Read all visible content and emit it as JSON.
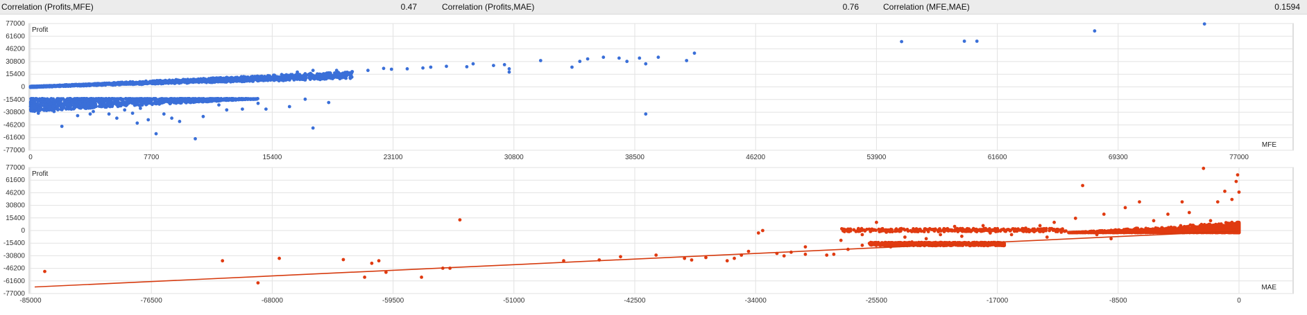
{
  "correlations": [
    {
      "label": "Correlation (Profits,MFE)",
      "value": "0.47"
    },
    {
      "label": "Correlation (Profits,MAE)",
      "value": "0.76"
    },
    {
      "label": "Correlation (MFE,MAE)",
      "value": "0.1594"
    }
  ],
  "colors": {
    "mfe_points": "#3a6fd8",
    "mae_points": "#e03a10",
    "trend_line": "#d63a0e",
    "grid": "#e2e2e2"
  },
  "chart_data": [
    {
      "type": "scatter",
      "title": "",
      "ylabel": "Profit",
      "xlabel": "MFE",
      "xlim": [
        0,
        77000
      ],
      "ylim": [
        -77000,
        77000
      ],
      "xticks": [
        "0",
        "7700",
        "15400",
        "23100",
        "30800",
        "38500",
        "46200",
        "53900",
        "61600",
        "69300",
        "77000"
      ],
      "yticks": [
        "77000",
        "61600",
        "46200",
        "30800",
        "15400",
        "0",
        "-15400",
        "-30800",
        "-46200",
        "-61600",
        "-77000"
      ],
      "grid": true,
      "series": [
        {
          "band_trend": {
            "x_start": 0,
            "x_end": 20500,
            "y_start": 0,
            "y_end": 18500
          },
          "loss_cluster": {
            "x_range": [
              0,
              14500
            ],
            "y_top": -14500,
            "y_bottom": -30000
          },
          "points": [
            [
              20500,
              18500
            ],
            [
              21500,
              20000
            ],
            [
              22500,
              22500
            ],
            [
              23000,
              21500
            ],
            [
              24000,
              22000
            ],
            [
              25000,
              23000
            ],
            [
              25500,
              24000
            ],
            [
              26500,
              25000
            ],
            [
              27800,
              24500
            ],
            [
              28200,
              28000
            ],
            [
              29500,
              26000
            ],
            [
              30200,
              27000
            ],
            [
              30500,
              22000
            ],
            [
              30500,
              18000
            ],
            [
              17000,
              18000
            ],
            [
              17500,
              16000
            ],
            [
              18000,
              20000
            ],
            [
              18500,
              15000
            ],
            [
              19000,
              17000
            ],
            [
              19500,
              20000
            ],
            [
              20000,
              16000
            ],
            [
              16000,
              15000
            ],
            [
              16500,
              13000
            ],
            [
              32500,
              32000
            ],
            [
              34500,
              24000
            ],
            [
              35000,
              31000
            ],
            [
              35500,
              34000
            ],
            [
              36500,
              36000
            ],
            [
              37500,
              35000
            ],
            [
              38000,
              31000
            ],
            [
              38800,
              35000
            ],
            [
              39200,
              28000
            ],
            [
              40000,
              36000
            ],
            [
              41800,
              32000
            ],
            [
              42300,
              41000
            ],
            [
              39200,
              -33000
            ],
            [
              55500,
              55000
            ],
            [
              59500,
              55500
            ],
            [
              60300,
              55500
            ],
            [
              67800,
              68000
            ],
            [
              74800,
              76500
            ],
            [
              10000,
              -14500
            ],
            [
              11000,
              -16000
            ],
            [
              12000,
              -15500
            ],
            [
              13500,
              -14500
            ],
            [
              14500,
              -20000
            ],
            [
              15000,
              -27000
            ],
            [
              13500,
              -27000
            ],
            [
              16500,
              -24000
            ],
            [
              17500,
              -15000
            ],
            [
              18000,
              -50000
            ],
            [
              19000,
              -19000
            ],
            [
              500,
              -32000
            ],
            [
              1000,
              -22000
            ],
            [
              1500,
              -30000
            ],
            [
              2000,
              -48000
            ],
            [
              3000,
              -35000
            ],
            [
              3500,
              -25000
            ],
            [
              4000,
              -30000
            ],
            [
              4500,
              -24000
            ],
            [
              5000,
              -33000
            ],
            [
              5500,
              -38000
            ],
            [
              6000,
              -28000
            ],
            [
              6500,
              -32000
            ],
            [
              7000,
              -26000
            ],
            [
              8000,
              -57000
            ],
            [
              8500,
              -33000
            ],
            [
              9500,
              -42000
            ],
            [
              10500,
              -63000
            ],
            [
              11000,
              -36000
            ],
            [
              12000,
              -22000
            ],
            [
              12500,
              -28000
            ],
            [
              9000,
              -38000
            ],
            [
              7500,
              -40000
            ],
            [
              6800,
              -44000
            ],
            [
              3800,
              -33000
            ]
          ]
        }
      ]
    },
    {
      "type": "scatter",
      "title": "",
      "ylabel": "Profit",
      "xlabel": "MAE",
      "xlim": [
        -85000,
        0
      ],
      "ylim": [
        -77000,
        77000
      ],
      "xticks": [
        "-85000",
        "-76500",
        "-68000",
        "-59500",
        "-51000",
        "-42500",
        "-34000",
        "-25500",
        "-17000",
        "-8500",
        "0"
      ],
      "yticks": [
        "77000",
        "61600",
        "46200",
        "30800",
        "15400",
        "0",
        "-15400",
        "-30800",
        "-46200",
        "-61600",
        "-77000"
      ],
      "grid": true,
      "trend": {
        "x": [
          -85000,
          0
        ],
        "y": [
          -69000,
          -500
        ]
      },
      "series": [
        {
          "dense_cluster": {
            "x_range": [
              -12000,
              0
            ],
            "y_range": [
              -3000,
              12000
            ]
          },
          "loss_band": {
            "x_range": [
              -26000,
              -16500
            ],
            "y_top": -14500,
            "y_bottom": -18500
          },
          "points": [
            [
              -84000,
              -50000
            ],
            [
              -71500,
              -37000
            ],
            [
              -67500,
              -34000
            ],
            [
              -63000,
              -35500
            ],
            [
              -60500,
              -37000
            ],
            [
              -61000,
              -40000
            ],
            [
              -55500,
              -46000
            ],
            [
              -61500,
              -57000
            ],
            [
              -60000,
              -51000
            ],
            [
              -69000,
              -64000
            ],
            [
              -57500,
              -57000
            ],
            [
              -56000,
              -46000
            ],
            [
              -54800,
              13000
            ],
            [
              -47500,
              -37000
            ],
            [
              -45000,
              -36000
            ],
            [
              -43500,
              -32000
            ],
            [
              -41000,
              -30000
            ],
            [
              -39000,
              -34000
            ],
            [
              -38500,
              -36000
            ],
            [
              -37500,
              -33000
            ],
            [
              -36000,
              -37000
            ],
            [
              -35500,
              -34000
            ],
            [
              -35000,
              -30000
            ],
            [
              -34500,
              -25500
            ],
            [
              -33500,
              0
            ],
            [
              -32500,
              -28000
            ],
            [
              -32000,
              -31000
            ],
            [
              -31500,
              -26500
            ],
            [
              -30500,
              -29000
            ],
            [
              -29000,
              -30000
            ],
            [
              -28500,
              -29000
            ],
            [
              -27500,
              -23000
            ],
            [
              -26500,
              -18000
            ],
            [
              -25500,
              -15000
            ],
            [
              -24500,
              -20000
            ],
            [
              -23000,
              -14000
            ],
            [
              -22000,
              -10000
            ],
            [
              -21000,
              -5000
            ],
            [
              -20500,
              0
            ],
            [
              -20000,
              5000
            ],
            [
              -19500,
              -7000
            ],
            [
              -19000,
              2000
            ],
            [
              -18000,
              6000
            ],
            [
              -17500,
              -3000
            ],
            [
              -16000,
              -5000
            ],
            [
              -15000,
              3000
            ],
            [
              -14000,
              6000
            ],
            [
              -13500,
              -8000
            ],
            [
              -13000,
              10000
            ],
            [
              -12500,
              -2000
            ],
            [
              -11500,
              15000
            ],
            [
              -11000,
              55000
            ],
            [
              -10000,
              -5000
            ],
            [
              -9500,
              20000
            ],
            [
              -9000,
              -10000
            ],
            [
              -8000,
              28000
            ],
            [
              -7000,
              35000
            ],
            [
              -6000,
              12000
            ],
            [
              -5000,
              20000
            ],
            [
              -4000,
              35000
            ],
            [
              -3500,
              22000
            ],
            [
              -2500,
              76000
            ],
            [
              -2000,
              12000
            ],
            [
              -1500,
              35000
            ],
            [
              -1000,
              48000
            ],
            [
              -500,
              38000
            ],
            [
              -200,
              60000
            ],
            [
              -100,
              68000
            ],
            [
              0,
              47000
            ],
            [
              -30500,
              -20000
            ],
            [
              -28000,
              -12000
            ],
            [
              -26500,
              -5000
            ],
            [
              -25500,
              10000
            ],
            [
              -24800,
              -2000
            ],
            [
              -23500,
              -8000
            ],
            [
              -33800,
              -3000
            ]
          ]
        }
      ]
    }
  ]
}
